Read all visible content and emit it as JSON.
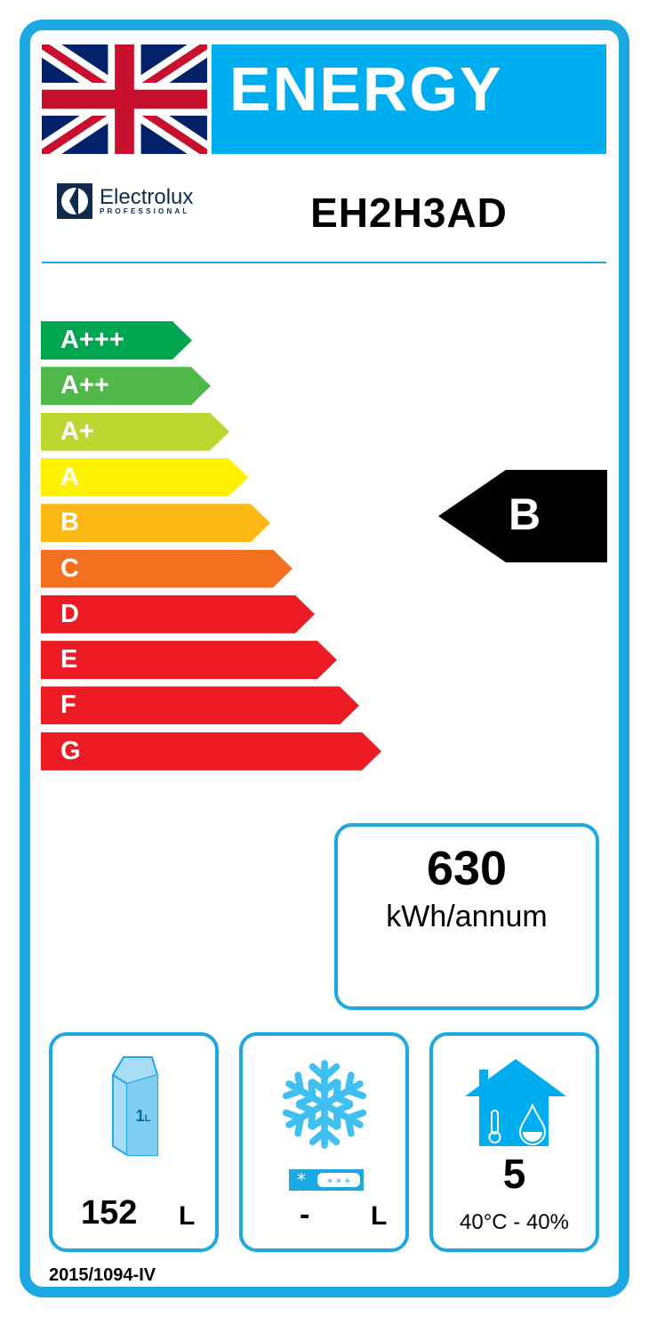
{
  "header": {
    "title": "ENERGY",
    "flag": "union-jack"
  },
  "brand": {
    "name": "Electrolux",
    "sub": "PROFESSIONAL"
  },
  "model": "EH2H3AD",
  "scale": [
    {
      "label": "A+++",
      "color": "#00a650"
    },
    {
      "label": "A++",
      "color": "#50b848"
    },
    {
      "label": "A+",
      "color": "#bed630"
    },
    {
      "label": "A",
      "color": "#fff200"
    },
    {
      "label": "B",
      "color": "#fdb913"
    },
    {
      "label": "C",
      "color": "#f37021"
    },
    {
      "label": "D",
      "color": "#ed1c24"
    },
    {
      "label": "E",
      "color": "#ed1c24"
    },
    {
      "label": "F",
      "color": "#ed1c24"
    },
    {
      "label": "G",
      "color": "#ed1c24"
    }
  ],
  "rating": "B",
  "consumption": {
    "value": "630",
    "unit": "kWh/annum"
  },
  "chill_volume": {
    "value": "152",
    "unit": "L",
    "icon": "milk-carton-1l-icon",
    "icon_text": "1L"
  },
  "freeze_volume": {
    "value": "-",
    "unit": "L",
    "icon": "snowflake-icon"
  },
  "climate": {
    "class": "5",
    "conditions": "40°C - 40%",
    "icon": "house-thermometer-drop-icon"
  },
  "regulation": "2015/1094-IV",
  "accent": "#1ca8e3"
}
